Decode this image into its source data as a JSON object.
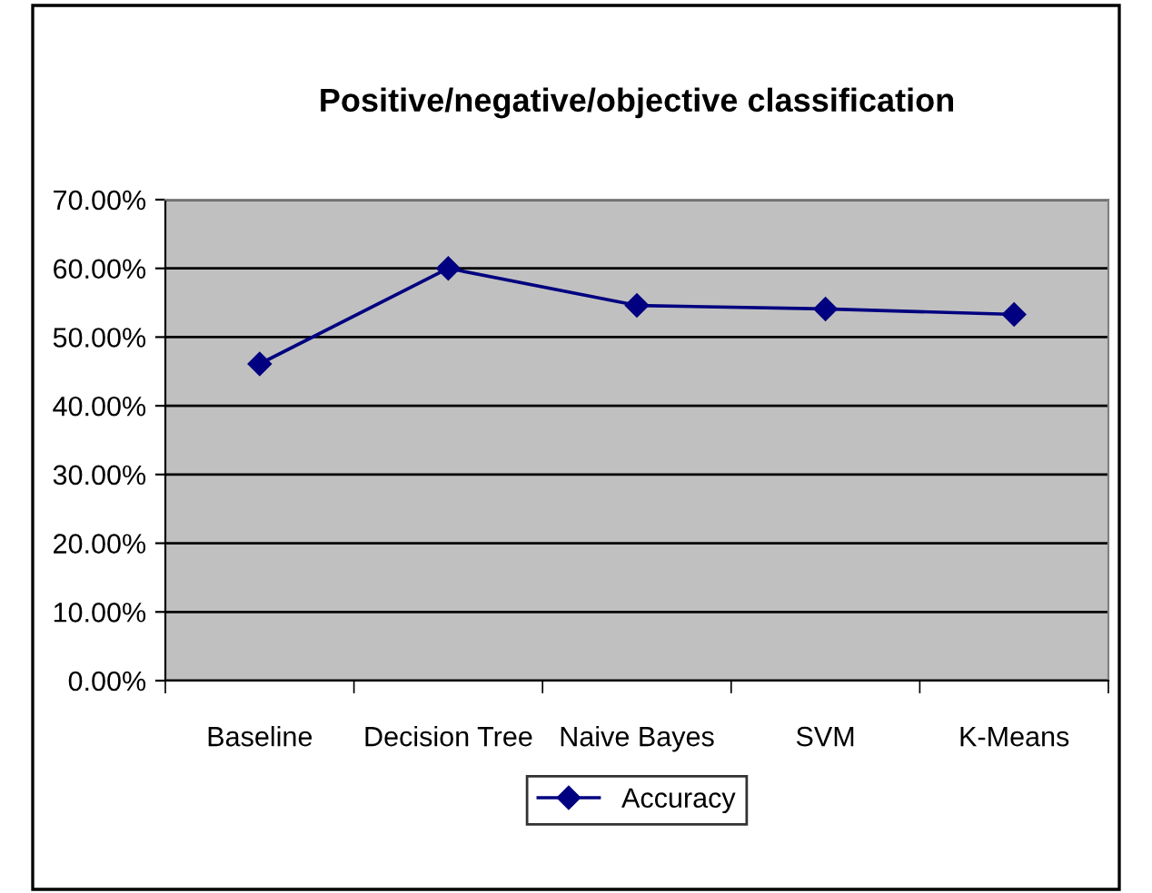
{
  "chart_data": {
    "type": "line",
    "title": "Positive/negative/objective classification",
    "categories": [
      "Baseline",
      "Decision Tree",
      "Naive Bayes",
      "SVM",
      "K-Means"
    ],
    "series": [
      {
        "name": "Accuracy",
        "color": "#000080",
        "values": [
          46.1,
          60.0,
          54.6,
          54.1,
          53.3
        ]
      }
    ],
    "ylim": [
      0,
      70
    ],
    "yticks": [
      {
        "value": 0,
        "label": "0.00%"
      },
      {
        "value": 10,
        "label": "10.00%"
      },
      {
        "value": 20,
        "label": "20.00%"
      },
      {
        "value": 30,
        "label": "30.00%"
      },
      {
        "value": 40,
        "label": "40.00%"
      },
      {
        "value": 50,
        "label": "50.00%"
      },
      {
        "value": 60,
        "label": "60.00%"
      },
      {
        "value": 70,
        "label": "70.00%"
      }
    ],
    "grid": "y",
    "legend": "bottom",
    "marker": "diamond",
    "line_style": "solid"
  }
}
